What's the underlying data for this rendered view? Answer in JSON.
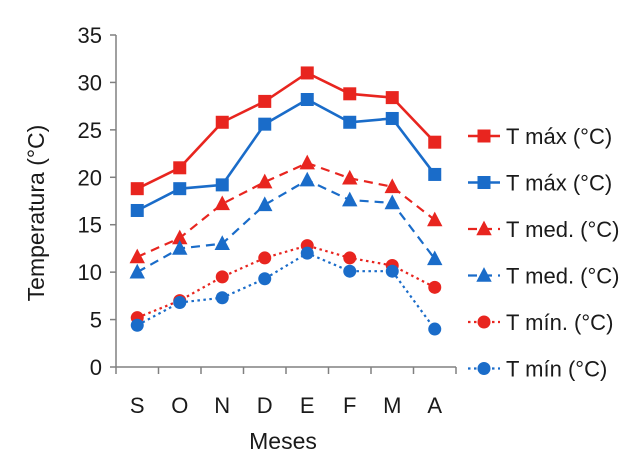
{
  "chart_data": {
    "type": "line",
    "title": "",
    "xlabel": "Meses",
    "ylabel": "Temperatura (°C)",
    "categories": [
      "S",
      "O",
      "N",
      "D",
      "E",
      "F",
      "M",
      "A"
    ],
    "ylim": [
      0,
      35
    ],
    "yticks": [
      0,
      5,
      10,
      15,
      20,
      25,
      30,
      35
    ],
    "grid": false,
    "legend": "right",
    "series": [
      {
        "name": "T máx (°C)",
        "color": "#e8251f",
        "line": "solid",
        "marker": "square",
        "values": [
          18.8,
          21.0,
          25.8,
          28.0,
          31.0,
          28.8,
          28.4,
          23.7
        ]
      },
      {
        "name": "T máx (°C)",
        "color": "#1a6cc9",
        "line": "solid",
        "marker": "square",
        "values": [
          16.5,
          18.8,
          19.2,
          25.6,
          28.2,
          25.8,
          26.2,
          20.3
        ]
      },
      {
        "name": "T med. (°C)",
        "color": "#e8251f",
        "line": "dashed",
        "marker": "triangle",
        "values": [
          11.6,
          13.6,
          17.2,
          19.5,
          21.5,
          19.9,
          19.0,
          15.5
        ]
      },
      {
        "name": "T med. (°C)",
        "color": "#1a6cc9",
        "line": "dashed",
        "marker": "triangle",
        "values": [
          10.0,
          12.5,
          13.0,
          17.1,
          19.7,
          17.6,
          17.3,
          11.4
        ]
      },
      {
        "name": "T mín. (°C)",
        "color": "#e8251f",
        "line": "dotted",
        "marker": "circle",
        "values": [
          5.2,
          7.0,
          9.5,
          11.5,
          12.8,
          11.5,
          10.7,
          8.4
        ]
      },
      {
        "name": "T mín (°C)",
        "color": "#1a6cc9",
        "line": "dotted",
        "marker": "circle",
        "values": [
          4.4,
          6.8,
          7.3,
          9.3,
          12.0,
          10.1,
          10.1,
          4.0
        ]
      }
    ]
  }
}
